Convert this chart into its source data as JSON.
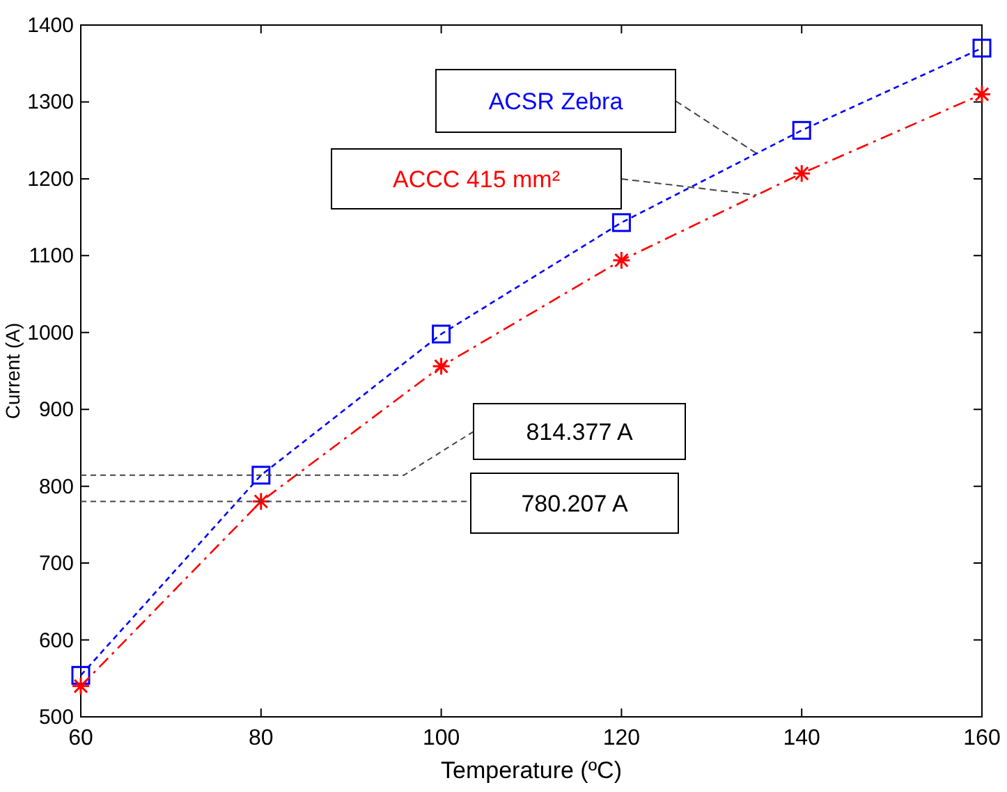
{
  "chart_data": {
    "type": "line",
    "xlabel": "Temperature (ºC)",
    "ylabel": "Current (A)",
    "x": [
      60,
      80,
      100,
      120,
      140,
      160
    ],
    "xlim": [
      60,
      160
    ],
    "xticks": [
      60,
      80,
      100,
      120,
      140,
      160
    ],
    "ylim": [
      500,
      1400
    ],
    "yticks": [
      500,
      600,
      700,
      800,
      900,
      1000,
      1100,
      1200,
      1300,
      1400
    ],
    "grid": false,
    "legend": false,
    "series": [
      {
        "name": "ACSR Zebra",
        "color": "#0000ff",
        "marker": "square",
        "line_style": "dashed",
        "values": [
          554,
          814.377,
          998,
          1143,
          1263,
          1370
        ]
      },
      {
        "name": "ACCC 415 mm²",
        "color": "#ff0000",
        "marker": "cross",
        "line_style": "dashed",
        "values": [
          540,
          780.207,
          956,
          1094,
          1207,
          1310
        ]
      }
    ],
    "ref_lines": [
      {
        "axis": "y",
        "value": 814.377,
        "label": "814.377 A",
        "color": "#444444",
        "line_style": "dashed"
      },
      {
        "axis": "y",
        "value": 780.207,
        "label": "780.207 A",
        "color": "#444444",
        "line_style": "dashed"
      }
    ]
  }
}
